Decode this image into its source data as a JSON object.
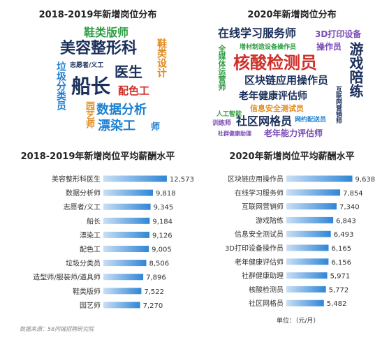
{
  "colors": {
    "navy": "#1a2f5a",
    "blue": "#1e7fd0",
    "green": "#2e9e44",
    "red": "#d0302a",
    "orange": "#e08a1c",
    "purple": "#7b4bb5",
    "teal": "#16a3b8",
    "bar_gradient_start": "#c9dff5",
    "bar_gradient_end": "#2f86d6"
  },
  "clouds": {
    "left": {
      "title": "2018-2019年新增岗位分布",
      "words": [
        {
          "text": "鞋类版师",
          "color": "#2e9e44"
        },
        {
          "text": "美容整形科",
          "color": "#1a2f5a"
        },
        {
          "text": "鞋类设计",
          "color": "#e08a1c"
        },
        {
          "text": "志愿者/义工",
          "color": "#1a2f5a"
        },
        {
          "text": "医生",
          "color": "#1a2f5a"
        },
        {
          "text": "垃圾分类员",
          "color": "#1e7fd0"
        },
        {
          "text": "船长",
          "color": "#1a2f5a"
        },
        {
          "text": "配色工",
          "color": "#d0302a"
        },
        {
          "text": "园艺师",
          "color": "#e08a1c"
        },
        {
          "text": "数据分析",
          "color": "#1e7fd0"
        },
        {
          "text": "漂染工",
          "color": "#1e7fd0"
        },
        {
          "text": "师",
          "color": "#1e7fd0"
        }
      ]
    },
    "right": {
      "title": "2020年新增岗位分布",
      "words": [
        {
          "text": "在线学习服务师",
          "color": "#1a2f5a"
        },
        {
          "text": "3D打印设备",
          "color": "#7b4bb5"
        },
        {
          "text": "增材制造设备操作员",
          "color": "#2e9e44"
        },
        {
          "text": "操作员",
          "color": "#7b4bb5"
        },
        {
          "text": "全媒体运营师",
          "color": "#2e9e44"
        },
        {
          "text": "核酸检测员",
          "color": "#d0302a"
        },
        {
          "text": "游戏陪练",
          "color": "#1a2f5a"
        },
        {
          "text": "区块链应用操作员",
          "color": "#1a2f5a"
        },
        {
          "text": "老年健康评估师",
          "color": "#1a2f5a"
        },
        {
          "text": "互联网营销师",
          "color": "#1a2f5a"
        },
        {
          "text": "信息安全测试员",
          "color": "#e08a1c"
        },
        {
          "text": "人工智能",
          "color": "#2e9e44"
        },
        {
          "text": "训练师",
          "color": "#7b4bb5"
        },
        {
          "text": "社区网格员",
          "color": "#1a2f5a"
        },
        {
          "text": "网约配送员",
          "color": "#1e7fd0"
        },
        {
          "text": "社群健康助理",
          "color": "#7b4bb5"
        },
        {
          "text": "老年能力评估师",
          "color": "#7b4bb5"
        }
      ]
    }
  },
  "chart_data": [
    {
      "type": "bar",
      "orientation": "horizontal",
      "title": "2018-2019年新增岗位平均薪酬水平",
      "categories": [
        "美容整形科医生",
        "数据分析师",
        "志愿者/义工",
        "船长",
        "漂染工",
        "配色工",
        "垃圾分类员",
        "造型师/服装师/道具师",
        "鞋类版师",
        "园艺师"
      ],
      "values": [
        12573,
        9818,
        9345,
        9184,
        9126,
        9005,
        8506,
        7896,
        7522,
        7270
      ],
      "value_labels": [
        "12,573",
        "9,818",
        "9,345",
        "9,184",
        "9,126",
        "9,005",
        "8,506",
        "7,896",
        "7,522",
        "7,270"
      ],
      "xlim": [
        0,
        13000
      ]
    },
    {
      "type": "bar",
      "orientation": "horizontal",
      "title": "2020年新增岗位平均薪酬水平",
      "categories": [
        "区块链应用操作员",
        "在线学习服务师",
        "互联网营销师",
        "游戏陪练",
        "信息安全测试员",
        "3D打印设备操作员",
        "老年健康评估师",
        "社群健康助理",
        "核酸检测员",
        "社区网格员"
      ],
      "values": [
        9638,
        7854,
        7340,
        6843,
        6493,
        6165,
        6156,
        5971,
        5772,
        5482
      ],
      "value_labels": [
        "9,638",
        "7,854",
        "7,340",
        "6,843",
        "6,493",
        "6,165",
        "6,156",
        "5,971",
        "5,772",
        "5,482"
      ],
      "xlim": [
        0,
        10500
      ],
      "unit": "单位：（元/月）"
    }
  ],
  "source": "数据来源：58同城招聘研究院"
}
